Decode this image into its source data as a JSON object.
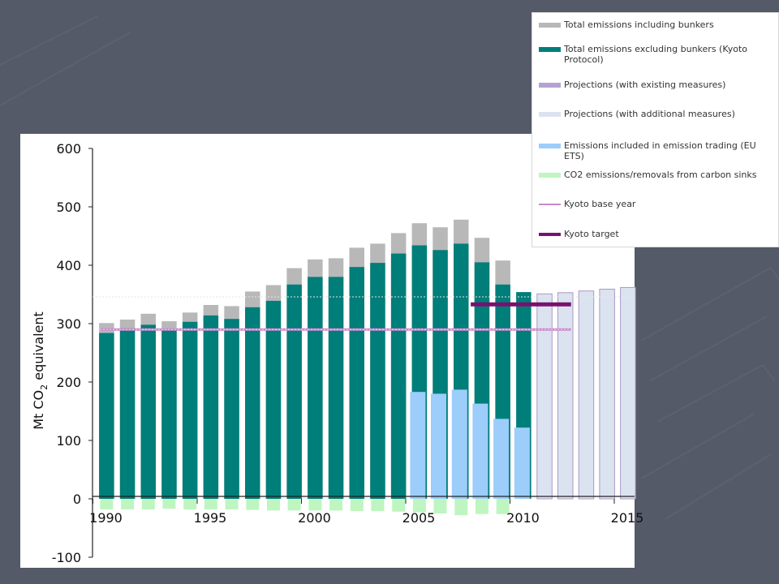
{
  "chart_data": {
    "type": "bar",
    "title": "",
    "ylabel": "Mt CO",
    "ylabel_sub": "2",
    "ylabel_suffix": " equivalent",
    "ylim": [
      -100,
      600
    ],
    "yticks": [
      -100,
      0,
      100,
      200,
      300,
      400,
      500,
      600
    ],
    "xticks": [
      "1990",
      "1995",
      "2000",
      "2005",
      "2010",
      "2015"
    ],
    "grid": false,
    "legend_position": "top-right",
    "colors": {
      "total_incl": "#b8b8b8",
      "total_excl": "#007e7a",
      "proj_existing": "#b4a3d2",
      "proj_additional": "#dce3f0",
      "proj_additional_edge": "#a99ac4",
      "eu_ets": "#9ccdfb",
      "sinks": "#bff5c0",
      "kyoto_base": "#cc88cc",
      "kyoto_target": "#7a1070"
    },
    "years": [
      1990,
      1991,
      1992,
      1993,
      1994,
      1995,
      1996,
      1997,
      1998,
      1999,
      2000,
      2001,
      2002,
      2003,
      2004,
      2005,
      2006,
      2007,
      2008,
      2009,
      2010,
      2011,
      2012,
      2013,
      2014,
      2015
    ],
    "series": [
      {
        "name": "Total emissions including bunkers",
        "key": "total_incl",
        "values": [
          301,
          307,
          317,
          304,
          319,
          332,
          330,
          355,
          366,
          395,
          410,
          412,
          430,
          437,
          455,
          472,
          465,
          478,
          447,
          408,
          null,
          null,
          null,
          null,
          null,
          null
        ]
      },
      {
        "name": "Total emissions excluding bunkers (Kyoto Protocol)",
        "key": "total_excl",
        "values": [
          284,
          292,
          298,
          290,
          303,
          314,
          308,
          328,
          339,
          367,
          380,
          380,
          397,
          404,
          420,
          434,
          426,
          437,
          405,
          367,
          354,
          null,
          null,
          null,
          null,
          null
        ]
      },
      {
        "name": "Projections (with existing measures)",
        "key": "proj_existing",
        "values": [
          null,
          null,
          null,
          null,
          null,
          null,
          null,
          null,
          null,
          null,
          null,
          null,
          null,
          null,
          null,
          null,
          null,
          null,
          null,
          null,
          null,
          null,
          null,
          null,
          null,
          null
        ]
      },
      {
        "name": "Projections (with additional measures)",
        "key": "proj_additional",
        "values": [
          null,
          null,
          null,
          null,
          null,
          null,
          null,
          null,
          null,
          null,
          null,
          null,
          null,
          null,
          null,
          null,
          null,
          null,
          null,
          null,
          null,
          351,
          353,
          356,
          359,
          362
        ]
      },
      {
        "name": "Emissions included in emission trading (EU ETS)",
        "key": "eu_ets",
        "values": [
          null,
          null,
          null,
          null,
          null,
          null,
          null,
          null,
          null,
          null,
          null,
          null,
          null,
          null,
          null,
          183,
          180,
          187,
          163,
          137,
          122,
          null,
          null,
          null,
          null,
          null
        ]
      },
      {
        "name": "CO2 emissions/removals from carbon sinks",
        "key": "sinks",
        "values": [
          -18,
          -18,
          -18,
          -17,
          -18,
          -18,
          -18,
          -19,
          -20,
          -20,
          -20,
          -20,
          -21,
          -21,
          -22,
          -23,
          -25,
          -28,
          -26,
          -26,
          null,
          null,
          null,
          null,
          null,
          null
        ]
      }
    ],
    "kyoto_base_year": {
      "name": "Kyoto base year",
      "value": 290,
      "from": 1990,
      "to": 2012
    },
    "kyoto_target": {
      "name": "Kyoto target",
      "value": 333,
      "from": 2008,
      "to": 2012
    }
  },
  "legend": {
    "items": [
      {
        "label": "Total emissions including bunkers",
        "swatch": "bar",
        "key": "total_incl"
      },
      {
        "label": "Total emissions excluding bunkers (Kyoto Protocol)",
        "swatch": "bar",
        "key": "total_excl"
      },
      {
        "label": "Projections (with existing measures)",
        "swatch": "bar",
        "key": "proj_existing"
      },
      {
        "label": "Projections (with additional measures)",
        "swatch": "bar",
        "key": "proj_additional"
      },
      {
        "label": "Emissions included in emission trading (EU ETS)",
        "swatch": "bar",
        "key": "eu_ets"
      },
      {
        "label": "CO2 emissions/removals from carbon sinks",
        "swatch": "bar",
        "key": "sinks"
      },
      {
        "label": "Kyoto base year",
        "swatch": "line",
        "key": "kyoto_base"
      },
      {
        "label": "Kyoto target",
        "swatch": "thickline",
        "key": "kyoto_target"
      }
    ]
  }
}
